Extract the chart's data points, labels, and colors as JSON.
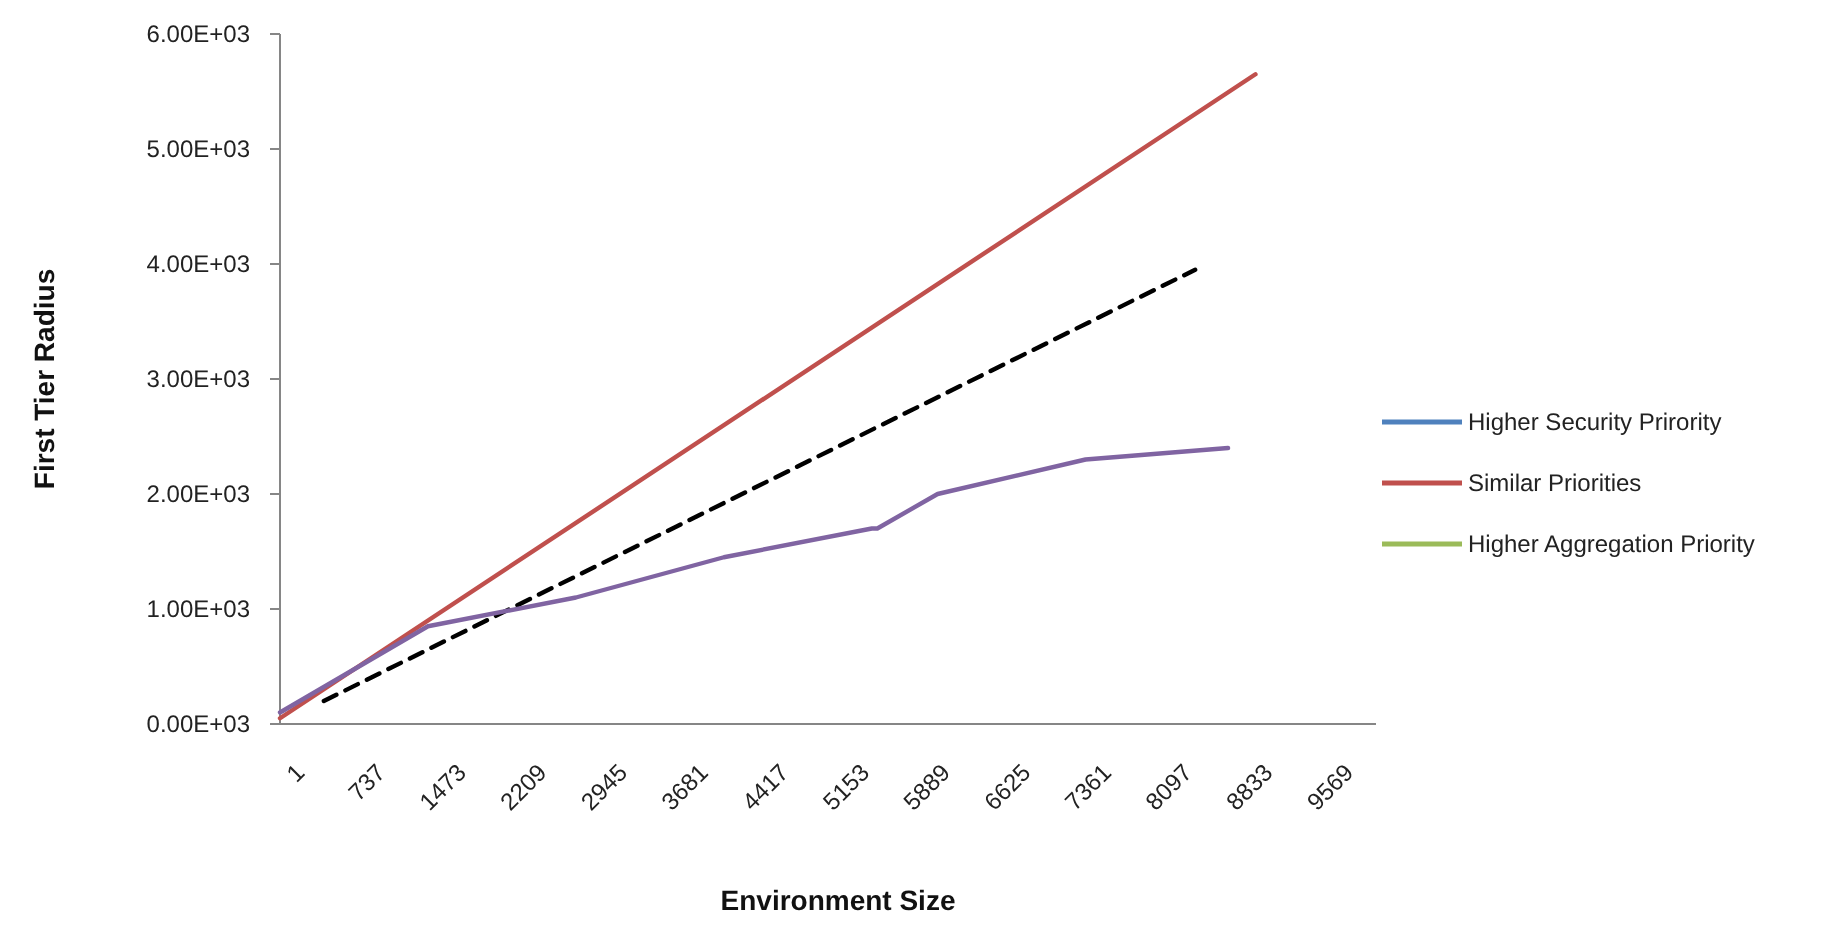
{
  "chart_data": {
    "type": "line",
    "xlabel": "Environment Size",
    "ylabel": "First Tier Radius",
    "xlim": [
      0,
      10000
    ],
    "xticks": [
      1,
      737,
      1473,
      2209,
      2945,
      3681,
      4417,
      5153,
      5889,
      6625,
      7361,
      8097,
      8833,
      9569
    ],
    "ylim": [
      0,
      6000
    ],
    "yticks": [
      {
        "value": 0,
        "label": "0.00E+03"
      },
      {
        "value": 1000,
        "label": "1.00E+03"
      },
      {
        "value": 2000,
        "label": "2.00E+03"
      },
      {
        "value": 3000,
        "label": "3.00E+03"
      },
      {
        "value": 4000,
        "label": "4.00E+03"
      },
      {
        "value": 5000,
        "label": "5.00E+03"
      },
      {
        "value": 6000,
        "label": "6.00E+03"
      }
    ],
    "grid": false,
    "legend": "right",
    "marker": "none",
    "line_style": "solid",
    "series": [
      {
        "name": "Higher Security Prirority",
        "color": "#4f81bd"
      },
      {
        "name": "Similar Priorities",
        "color": "#c0504d",
        "x": [
          0,
          8900
        ],
        "values": [
          50,
          5650
        ]
      },
      {
        "name": "Higher Aggregation Priority",
        "color": "#9bbb59"
      },
      {
        "color": "#000000",
        "line_style": "dashed",
        "x": [
          400,
          8350
        ],
        "values": [
          200,
          3950
        ]
      },
      {
        "color": "#8064a2",
        "x": [
          0,
          1350,
          2700,
          4050,
          5400,
          5450,
          6000,
          7350,
          8650
        ],
        "values": [
          100,
          850,
          1100,
          1450,
          1700,
          1700,
          2000,
          2300,
          2400
        ]
      }
    ]
  }
}
